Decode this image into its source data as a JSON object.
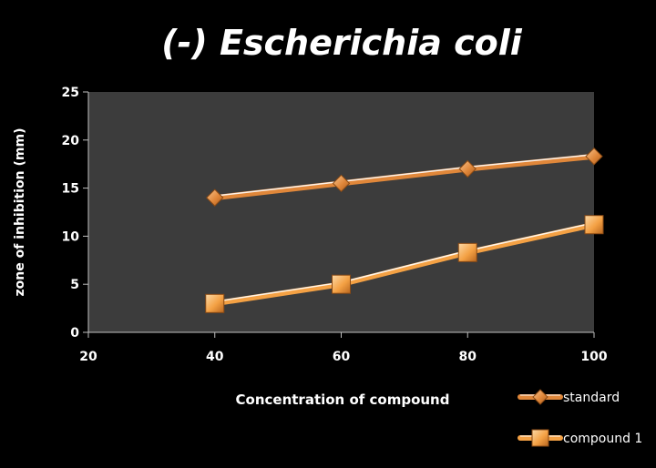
{
  "chart_data": {
    "type": "line",
    "title": "(-) Escherichia coli",
    "xlabel": "Concentration of  compound",
    "ylabel": "zone of inhibition (mm)",
    "xlim": [
      20,
      100
    ],
    "ylim": [
      0,
      25
    ],
    "x_ticks": [
      20,
      40,
      60,
      80,
      100
    ],
    "y_ticks": [
      0,
      5,
      10,
      15,
      20,
      25
    ],
    "x": [
      40,
      60,
      80,
      100
    ],
    "series": [
      {
        "name": "standard",
        "values": [
          14,
          15.5,
          17,
          18.3
        ],
        "marker": "diamond",
        "color": "#e0873a"
      },
      {
        "name": "compound 1",
        "values": [
          3,
          5,
          8.3,
          11.2
        ],
        "marker": "square",
        "color": "#f4a144"
      }
    ],
    "grid": false,
    "legend": "bottom-right",
    "colors": {
      "background": "#000000",
      "plot_area": "#3c3c3c",
      "text": "#ffffff",
      "line_highlight": "#ffffff"
    }
  }
}
